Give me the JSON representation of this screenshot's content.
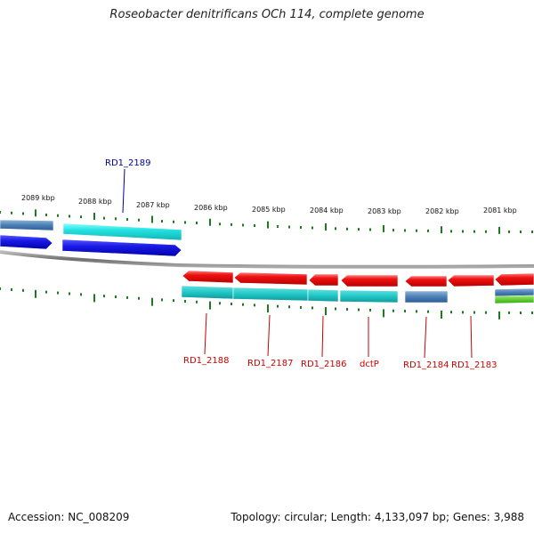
{
  "title": "Roseobacter denitrificans OCh 114, complete genome",
  "footer": {
    "accession": "Accession: NC_008209",
    "summary": "Topology: circular; Length: 4,133,097 bp; Genes: 3,988"
  },
  "kbp_labels": [
    "2089 kbp",
    "2088 kbp",
    "2087 kbp",
    "2086 kbp",
    "2085 kbp",
    "2084 kbp",
    "2083 kbp",
    "2082 kbp",
    "2081 kbp"
  ],
  "gene_labels": {
    "RD1_2189": "RD1_2189",
    "RD1_2188": "RD1_2188",
    "RD1_2187": "RD1_2187",
    "RD1_2186": "RD1_2186",
    "dctP": "dctP",
    "RD1_2184": "RD1_2184",
    "RD1_2183": "RD1_2183"
  },
  "colors": {
    "forward_cds": "#1a1ae6",
    "forward_feature": "#22dddd",
    "reverse_cds": "#ee1111",
    "reverse_feature": "#1fc7c7",
    "steel_feature": "#4a7fb5",
    "green_feature": "#55cc22",
    "ticks": "#1e7a1e",
    "backbone": "#808080",
    "label_forward": "#000099",
    "label_reverse": "#cc0000"
  }
}
